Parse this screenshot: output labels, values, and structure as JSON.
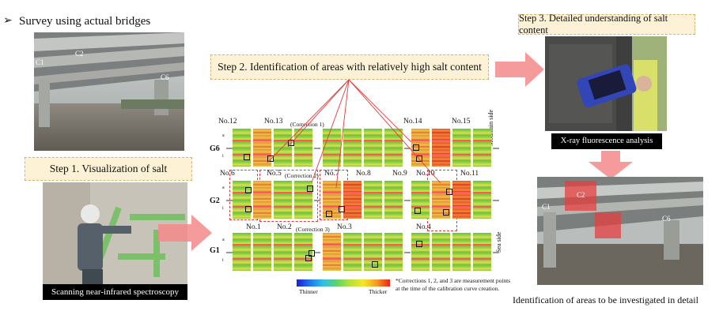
{
  "header": {
    "bullet": "➢",
    "title": "Survey using actual bridges"
  },
  "photos": {
    "bridge_labels": [
      "C1",
      "C2",
      "C6"
    ],
    "step1_caption": "Scanning near-infrared spectroscopy",
    "step3_caption": "X-ray fluorescence analysis",
    "detail_labels": [
      "C1",
      "C2",
      "C6"
    ]
  },
  "steps": {
    "step1": "Step 1. Visualization of salt",
    "step2": "Step 2. Identification of areas with relatively high salt content",
    "step3": "Step 3. Detailed understanding of salt content"
  },
  "map": {
    "row_labels": [
      "G6",
      "G2",
      "G1"
    ],
    "row_sub": [
      "a",
      "i"
    ],
    "top_numbers": [
      "No.12",
      "No.13",
      "No.14",
      "No.15"
    ],
    "mid_numbers": [
      "No.6",
      "No.5",
      "No.7",
      "No.8",
      "No.9",
      "No.10",
      "No.11"
    ],
    "bottom_numbers": [
      "No.1",
      "No.2",
      "No.3",
      "No.4"
    ],
    "corrections": [
      "(Correction 1)",
      "(Correction 2)",
      "(Correction 3)"
    ],
    "side_labels": {
      "mountain": "Mountain side",
      "sea": "Sea side"
    },
    "legend": {
      "low": "Thinner",
      "high": "Thicker"
    },
    "footnote_line1": "*Corrections 1, 2, and 3 are measurement points",
    "footnote_line2": "at the time of the calibration curve creation."
  },
  "result_caption": "Identification of areas to be investigated in detail",
  "colors": {
    "step_bg": "#fdf2d5",
    "arrow": "#f48a8a",
    "red_line": "#e33b3b"
  }
}
